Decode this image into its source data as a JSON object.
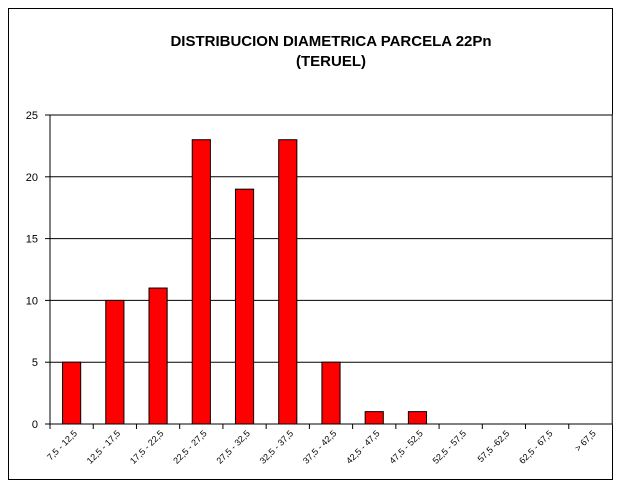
{
  "chart_data": {
    "type": "bar",
    "title": "DISTRIBUCION DIAMETRICA PARCELA 22Pn",
    "subtitle": "(TERUEL)",
    "categories": [
      "7,5 - 12,5",
      "12,5 - 17,5",
      "17,5 - 22,5",
      "22,5 - 27,5",
      "27,5 - 32,5",
      "32,5 - 37,5",
      "37,5 - 42,5",
      "42,5 - 47,5",
      "47,5 - 52,5",
      "52,5 - 57,5",
      "57,5 -62,5",
      "62,5 - 67,5",
      "> 67,5"
    ],
    "values": [
      5,
      10,
      11,
      23,
      19,
      23,
      5,
      1,
      1,
      0,
      0,
      0,
      0
    ],
    "color": "#ff0000",
    "ylim": [
      0,
      25
    ],
    "yticks": [
      0,
      5,
      10,
      15,
      20,
      25
    ],
    "grid": true
  }
}
